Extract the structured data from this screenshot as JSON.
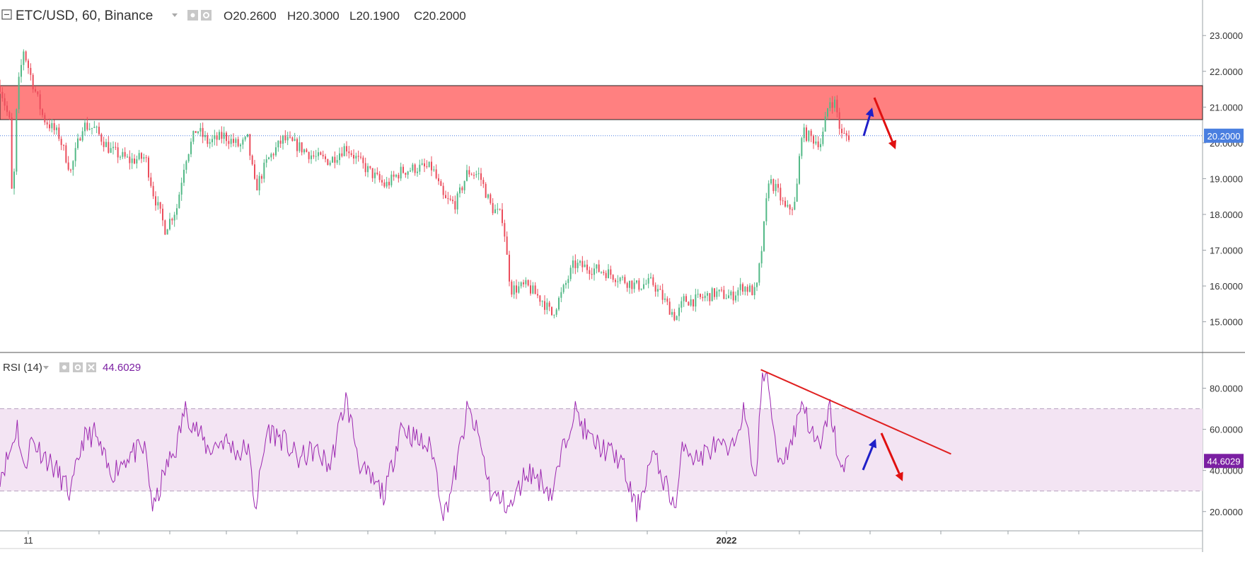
{
  "header": {
    "symbol": "ETC/USD, 60, Binance",
    "open_label": "O",
    "open": "20.2600",
    "high_label": "H",
    "high": "20.3000",
    "low_label": "L",
    "low": "20.1900",
    "close_label": "C",
    "close": "20.2000"
  },
  "rsi_header": {
    "label": "RSI (14)",
    "value": "44.6029"
  },
  "colors": {
    "candle_up": "#53b987",
    "candle_down": "#eb4d5c",
    "zone_fill": "#ff8080",
    "rsi_line": "#9c27b0",
    "rsi_band": "#f3e4f3",
    "trendline": "#e02020",
    "arrow_up": "#1f1fc8",
    "arrow_down": "#e01010",
    "last_price_badge": "#4a7fe0",
    "rsi_badge": "#7b1fa2"
  },
  "chart_data": [
    {
      "type": "candlestick",
      "symbol": "ETC/USD",
      "interval": "60",
      "exchange": "Binance",
      "ylim": [
        14.3,
        23.4
      ],
      "yticks": [
        "23.0000",
        "22.0000",
        "21.0000",
        "20.0000",
        "19.0000",
        "18.0000",
        "17.0000",
        "16.0000",
        "15.0000"
      ],
      "x_labels": [
        "11",
        "2022"
      ],
      "last_price": "20.2000",
      "resistance_zone": [
        20.65,
        21.6
      ],
      "path": [
        [
          0,
          21.6
        ],
        [
          12,
          20.6
        ],
        [
          16,
          18.0
        ],
        [
          22,
          21.4
        ],
        [
          30,
          22.6
        ],
        [
          40,
          21.8
        ],
        [
          55,
          20.7
        ],
        [
          75,
          20.2
        ],
        [
          90,
          19.2
        ],
        [
          105,
          20.5
        ],
        [
          120,
          20.4
        ],
        [
          140,
          19.8
        ],
        [
          165,
          19.5
        ],
        [
          185,
          19.6
        ],
        [
          195,
          18.6
        ],
        [
          210,
          17.6
        ],
        [
          225,
          18.2
        ],
        [
          235,
          19.5
        ],
        [
          250,
          20.4
        ],
        [
          265,
          20.0
        ],
        [
          285,
          20.2
        ],
        [
          305,
          19.9
        ],
        [
          315,
          20.1
        ],
        [
          325,
          18.7
        ],
        [
          340,
          19.5
        ],
        [
          360,
          20.1
        ],
        [
          380,
          19.9
        ],
        [
          400,
          19.6
        ],
        [
          420,
          19.5
        ],
        [
          440,
          19.9
        ],
        [
          460,
          19.4
        ],
        [
          490,
          18.8
        ],
        [
          510,
          19.2
        ],
        [
          530,
          19.3
        ],
        [
          550,
          19.3
        ],
        [
          565,
          18.4
        ],
        [
          580,
          18.3
        ],
        [
          595,
          19.2
        ],
        [
          610,
          19.1
        ],
        [
          625,
          18.2
        ],
        [
          640,
          17.9
        ],
        [
          645,
          16.8
        ],
        [
          650,
          15.9
        ],
        [
          670,
          16.0
        ],
        [
          690,
          15.6
        ],
        [
          702,
          15.2
        ],
        [
          715,
          15.8
        ],
        [
          730,
          16.6
        ],
        [
          750,
          16.5
        ],
        [
          770,
          16.4
        ],
        [
          790,
          16.2
        ],
        [
          810,
          16.0
        ],
        [
          830,
          16.1
        ],
        [
          845,
          15.6
        ],
        [
          860,
          15.1
        ],
        [
          870,
          15.6
        ],
        [
          885,
          15.6
        ],
        [
          910,
          15.8
        ],
        [
          930,
          15.7
        ],
        [
          945,
          16.0
        ],
        [
          962,
          15.8
        ],
        [
          970,
          17.2
        ],
        [
          978,
          19.0
        ],
        [
          990,
          18.6
        ],
        [
          1000,
          18.1
        ],
        [
          1012,
          18.3
        ],
        [
          1020,
          20.3
        ],
        [
          1035,
          20.1
        ],
        [
          1045,
          20.0
        ],
        [
          1055,
          21.2
        ],
        [
          1063,
          21.1
        ],
        [
          1070,
          20.2
        ],
        [
          1080,
          20.2
        ]
      ],
      "rsi": {
        "period": 14,
        "last": "44.6029",
        "ylim": [
          12,
          96
        ],
        "yticks": [
          "80.0000",
          "60.0000",
          "40.0000",
          "20.0000"
        ],
        "overbought": 70,
        "oversold": 30,
        "path": [
          [
            0,
            38
          ],
          [
            12,
            48
          ],
          [
            22,
            62
          ],
          [
            30,
            40
          ],
          [
            40,
            55
          ],
          [
            55,
            48
          ],
          [
            75,
            38
          ],
          [
            90,
            28
          ],
          [
            105,
            55
          ],
          [
            120,
            58
          ],
          [
            140,
            38
          ],
          [
            165,
            48
          ],
          [
            185,
            50
          ],
          [
            195,
            20
          ],
          [
            210,
            40
          ],
          [
            225,
            52
          ],
          [
            235,
            70
          ],
          [
            250,
            60
          ],
          [
            265,
            50
          ],
          [
            285,
            55
          ],
          [
            305,
            48
          ],
          [
            315,
            52
          ],
          [
            325,
            22
          ],
          [
            340,
            60
          ],
          [
            360,
            55
          ],
          [
            380,
            45
          ],
          [
            400,
            50
          ],
          [
            420,
            42
          ],
          [
            440,
            75
          ],
          [
            460,
            40
          ],
          [
            490,
            28
          ],
          [
            510,
            62
          ],
          [
            530,
            55
          ],
          [
            550,
            50
          ],
          [
            565,
            18
          ],
          [
            580,
            40
          ],
          [
            595,
            70
          ],
          [
            610,
            55
          ],
          [
            625,
            28
          ],
          [
            640,
            25
          ],
          [
            650,
            22
          ],
          [
            670,
            40
          ],
          [
            690,
            35
          ],
          [
            702,
            28
          ],
          [
            715,
            48
          ],
          [
            730,
            70
          ],
          [
            750,
            55
          ],
          [
            770,
            50
          ],
          [
            790,
            45
          ],
          [
            810,
            20
          ],
          [
            830,
            48
          ],
          [
            845,
            35
          ],
          [
            860,
            22
          ],
          [
            870,
            55
          ],
          [
            885,
            45
          ],
          [
            910,
            52
          ],
          [
            930,
            48
          ],
          [
            945,
            70
          ],
          [
            962,
            35
          ],
          [
            970,
            88
          ],
          [
            978,
            80
          ],
          [
            990,
            45
          ],
          [
            1000,
            48
          ],
          [
            1012,
            60
          ],
          [
            1020,
            75
          ],
          [
            1035,
            55
          ],
          [
            1045,
            50
          ],
          [
            1055,
            72
          ],
          [
            1063,
            55
          ],
          [
            1070,
            38
          ],
          [
            1080,
            45
          ]
        ],
        "trendline": [
          [
            968,
            89
          ],
          [
            1210,
            48
          ]
        ]
      }
    }
  ]
}
